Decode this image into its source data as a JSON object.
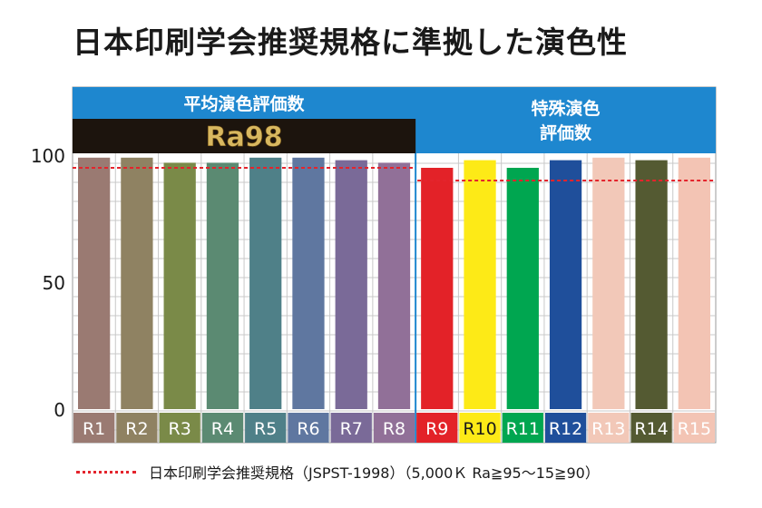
{
  "title": "日本印刷学会推奨規格に準拠した演色性",
  "legend": {
    "text": "日本印刷学会推奨規格（JSPST-1998）（5,000Ｋ Ra≧95～15≧90）",
    "line_color": "#e4242c"
  },
  "chart_data": {
    "type": "bar",
    "title": "日本印刷学会推奨規格に準拠した演色性",
    "xlabel": "",
    "ylabel": "",
    "ylim": [
      0,
      100
    ],
    "yticks": [
      0,
      50,
      100
    ],
    "grid": true,
    "groups": [
      {
        "label": "平均演色評価数",
        "badge": "Ra98",
        "categories": [
          "R1",
          "R2",
          "R3",
          "R4",
          "R5",
          "R6",
          "R7",
          "R8"
        ]
      },
      {
        "label": "特殊演色\n評価数",
        "categories": [
          "R9",
          "R10",
          "R11",
          "R12",
          "R13",
          "R14",
          "R15"
        ]
      }
    ],
    "categories": [
      "R1",
      "R2",
      "R3",
      "R4",
      "R5",
      "R6",
      "R7",
      "R8",
      "R9",
      "R10",
      "R11",
      "R12",
      "R13",
      "R14",
      "R15"
    ],
    "values": [
      99,
      99,
      97,
      97,
      99,
      99,
      98,
      97,
      95,
      98,
      95,
      98,
      99,
      98,
      99
    ],
    "colors": [
      "#9a7a72",
      "#8f8262",
      "#7a8a48",
      "#5b8a72",
      "#4f8088",
      "#5f77a0",
      "#7a6a98",
      "#917098",
      "#e32228",
      "#fdea17",
      "#00a650",
      "#1f4f9b",
      "#f2c8b8",
      "#545a32",
      "#f3c4b4"
    ],
    "label_text_colors": [
      "#ffffff",
      "#ffffff",
      "#ffffff",
      "#ffffff",
      "#ffffff",
      "#ffffff",
      "#ffffff",
      "#ffffff",
      "#ffffff",
      "#1a1a1a",
      "#ffffff",
      "#ffffff",
      "#ffffff",
      "#ffffff",
      "#ffffff"
    ],
    "reference_lines": [
      {
        "value": 95,
        "applies_to": "平均演色評価数"
      },
      {
        "value": 90,
        "applies_to": "特殊演色\n評価数"
      }
    ]
  }
}
